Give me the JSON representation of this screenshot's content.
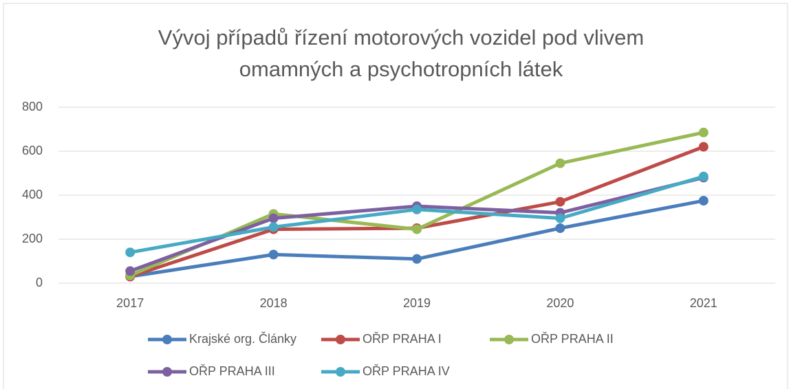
{
  "chart_data": {
    "type": "line",
    "title": [
      "Vývoj případů řízení motorových vozidel pod vlivem",
      "omamných a psychotropních látek"
    ],
    "categories": [
      "2017",
      "2018",
      "2019",
      "2020",
      "2021"
    ],
    "series": [
      {
        "name": "Krajské org. Články",
        "color": "#4a7ebb",
        "values": [
          30,
          130,
          110,
          250,
          375
        ]
      },
      {
        "name": "OŘP PRAHA I",
        "color": "#be4b48",
        "values": [
          30,
          245,
          250,
          370,
          620
        ]
      },
      {
        "name": "OŘP PRAHA II",
        "color": "#98b954",
        "values": [
          35,
          315,
          245,
          545,
          685
        ]
      },
      {
        "name": "OŘP PRAHA III",
        "color": "#7d60a0",
        "values": [
          55,
          295,
          350,
          320,
          480
        ]
      },
      {
        "name": "OŘP PRAHA IV",
        "color": "#46aac5",
        "values": [
          140,
          255,
          335,
          295,
          485
        ]
      }
    ],
    "ylim": [
      0,
      800
    ],
    "yticks": [
      0,
      200,
      400,
      600,
      800
    ],
    "grid": true,
    "legend": "bottom"
  }
}
